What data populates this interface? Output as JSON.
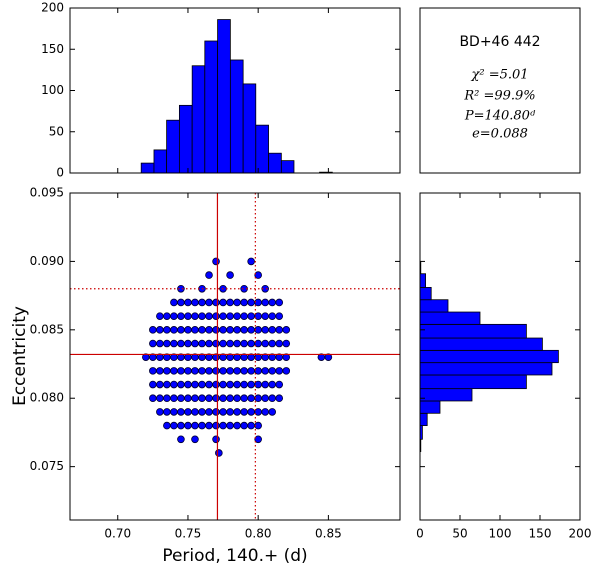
{
  "chart_data": [
    {
      "type": "histogram",
      "orientation": "vertical",
      "color": "#0000ff",
      "edge_color": "#000000",
      "bins": [
        0.7167,
        0.7258,
        0.7348,
        0.7439,
        0.753,
        0.762,
        0.7711,
        0.7802,
        0.7893,
        0.7983,
        0.8074,
        0.8165,
        0.8255,
        0.8346,
        0.8437,
        0.8528
      ],
      "counts": [
        12,
        28,
        64,
        82,
        130,
        160,
        186,
        137,
        108,
        58,
        24,
        15,
        0,
        0,
        1
      ],
      "xlim": [
        0.666,
        0.901
      ],
      "xticks": [
        0.7,
        0.75,
        0.8,
        0.85
      ],
      "ylim": [
        0,
        200
      ],
      "yticks": [
        0,
        50,
        100,
        150,
        200
      ]
    },
    {
      "type": "scatter",
      "color": "#0000ff",
      "edge_color": "#000033",
      "x_label": "Period, 140.+ (d)",
      "y_label": "Eccentricity",
      "annotations": [
        "BD+46 442",
        "χ² =5.01",
        "R² =99.9%",
        "P=140.80ᵈ",
        "e=0.088"
      ],
      "x": [
        0.77,
        0.795,
        0.765,
        0.78,
        0.8,
        0.745,
        0.76,
        0.775,
        0.79,
        0.805,
        0.74,
        0.745,
        0.75,
        0.755,
        0.76,
        0.765,
        0.77,
        0.775,
        0.78,
        0.785,
        0.79,
        0.795,
        0.8,
        0.805,
        0.81,
        0.815,
        0.73,
        0.735,
        0.74,
        0.745,
        0.75,
        0.755,
        0.76,
        0.765,
        0.77,
        0.775,
        0.78,
        0.785,
        0.79,
        0.795,
        0.8,
        0.805,
        0.81,
        0.815,
        0.725,
        0.73,
        0.735,
        0.74,
        0.745,
        0.75,
        0.755,
        0.76,
        0.765,
        0.77,
        0.775,
        0.78,
        0.785,
        0.79,
        0.795,
        0.8,
        0.805,
        0.81,
        0.815,
        0.82,
        0.725,
        0.73,
        0.735,
        0.74,
        0.745,
        0.75,
        0.755,
        0.76,
        0.765,
        0.77,
        0.775,
        0.78,
        0.785,
        0.79,
        0.795,
        0.8,
        0.805,
        0.81,
        0.815,
        0.82,
        0.72,
        0.725,
        0.73,
        0.735,
        0.74,
        0.745,
        0.75,
        0.755,
        0.76,
        0.765,
        0.77,
        0.775,
        0.78,
        0.785,
        0.79,
        0.795,
        0.8,
        0.805,
        0.81,
        0.815,
        0.82,
        0.845,
        0.85,
        0.725,
        0.73,
        0.735,
        0.74,
        0.745,
        0.75,
        0.755,
        0.76,
        0.765,
        0.77,
        0.775,
        0.78,
        0.785,
        0.79,
        0.795,
        0.8,
        0.805,
        0.81,
        0.815,
        0.82,
        0.725,
        0.73,
        0.735,
        0.74,
        0.745,
        0.75,
        0.755,
        0.76,
        0.765,
        0.77,
        0.775,
        0.78,
        0.785,
        0.79,
        0.795,
        0.8,
        0.805,
        0.81,
        0.815,
        0.725,
        0.73,
        0.735,
        0.74,
        0.745,
        0.75,
        0.755,
        0.76,
        0.765,
        0.77,
        0.775,
        0.78,
        0.785,
        0.79,
        0.795,
        0.8,
        0.805,
        0.81,
        0.815,
        0.73,
        0.735,
        0.74,
        0.745,
        0.75,
        0.755,
        0.76,
        0.765,
        0.77,
        0.775,
        0.78,
        0.785,
        0.79,
        0.795,
        0.8,
        0.805,
        0.81,
        0.735,
        0.74,
        0.745,
        0.75,
        0.755,
        0.76,
        0.765,
        0.77,
        0.775,
        0.78,
        0.785,
        0.79,
        0.795,
        0.8,
        0.745,
        0.755,
        0.77,
        0.8,
        0.772
      ],
      "y": [
        0.09,
        0.09,
        0.089,
        0.089,
        0.089,
        0.088,
        0.088,
        0.088,
        0.088,
        0.088,
        0.087,
        0.087,
        0.087,
        0.087,
        0.087,
        0.087,
        0.087,
        0.087,
        0.087,
        0.087,
        0.087,
        0.087,
        0.087,
        0.087,
        0.087,
        0.087,
        0.086,
        0.086,
        0.086,
        0.086,
        0.086,
        0.086,
        0.086,
        0.086,
        0.086,
        0.086,
        0.086,
        0.086,
        0.086,
        0.086,
        0.086,
        0.086,
        0.086,
        0.086,
        0.085,
        0.085,
        0.085,
        0.085,
        0.085,
        0.085,
        0.085,
        0.085,
        0.085,
        0.085,
        0.085,
        0.085,
        0.085,
        0.085,
        0.085,
        0.085,
        0.085,
        0.085,
        0.085,
        0.085,
        0.084,
        0.084,
        0.084,
        0.084,
        0.084,
        0.084,
        0.084,
        0.084,
        0.084,
        0.084,
        0.084,
        0.084,
        0.084,
        0.084,
        0.084,
        0.084,
        0.084,
        0.084,
        0.084,
        0.084,
        0.083,
        0.083,
        0.083,
        0.083,
        0.083,
        0.083,
        0.083,
        0.083,
        0.083,
        0.083,
        0.083,
        0.083,
        0.083,
        0.083,
        0.083,
        0.083,
        0.083,
        0.083,
        0.083,
        0.083,
        0.083,
        0.083,
        0.083,
        0.082,
        0.082,
        0.082,
        0.082,
        0.082,
        0.082,
        0.082,
        0.082,
        0.082,
        0.082,
        0.082,
        0.082,
        0.082,
        0.082,
        0.082,
        0.082,
        0.082,
        0.082,
        0.082,
        0.082,
        0.081,
        0.081,
        0.081,
        0.081,
        0.081,
        0.081,
        0.081,
        0.081,
        0.081,
        0.081,
        0.081,
        0.081,
        0.081,
        0.081,
        0.081,
        0.081,
        0.081,
        0.081,
        0.081,
        0.08,
        0.08,
        0.08,
        0.08,
        0.08,
        0.08,
        0.08,
        0.08,
        0.08,
        0.08,
        0.08,
        0.08,
        0.08,
        0.08,
        0.08,
        0.08,
        0.08,
        0.08,
        0.08,
        0.079,
        0.079,
        0.079,
        0.079,
        0.079,
        0.079,
        0.079,
        0.079,
        0.079,
        0.079,
        0.079,
        0.079,
        0.079,
        0.079,
        0.079,
        0.079,
        0.079,
        0.078,
        0.078,
        0.078,
        0.078,
        0.078,
        0.078,
        0.078,
        0.078,
        0.078,
        0.078,
        0.078,
        0.078,
        0.078,
        0.078,
        0.077,
        0.077,
        0.077,
        0.077,
        0.076
      ],
      "reference_lines": [
        {
          "axis": "x",
          "value": 0.771,
          "style": "solid",
          "color": "#cc0000"
        },
        {
          "axis": "x",
          "value": 0.798,
          "style": "dotted",
          "color": "#cc0000"
        },
        {
          "axis": "y",
          "value": 0.0832,
          "style": "solid",
          "color": "#cc0000"
        },
        {
          "axis": "y",
          "value": 0.088,
          "style": "dotted",
          "color": "#cc0000"
        }
      ],
      "xlim": [
        0.666,
        0.901
      ],
      "xticks": [
        {
          "value": 0.7,
          "label": "0.70"
        },
        0.75,
        {
          "value": 0.8,
          "label": "0.80"
        },
        0.85
      ],
      "ylim": [
        0.0711,
        0.095
      ],
      "yticks": [
        0.075,
        {
          "value": 0.08,
          "label": "0.080"
        },
        0.085,
        {
          "value": 0.09,
          "label": "0.090"
        },
        0.095
      ]
    },
    {
      "type": "histogram",
      "orientation": "horizontal",
      "color": "#0000ff",
      "edge_color": "#000000",
      "bins": [
        0.0761,
        0.077,
        0.078,
        0.0789,
        0.0798,
        0.0807,
        0.0817,
        0.0826,
        0.0835,
        0.0844,
        0.0854,
        0.0863,
        0.0872,
        0.0881,
        0.0891,
        0.09
      ],
      "counts": [
        1,
        3,
        9,
        25,
        65,
        133,
        165,
        173,
        153,
        133,
        75,
        35,
        14,
        7,
        1
      ],
      "xlim": [
        0,
        200
      ],
      "xticks": [
        0,
        50,
        100,
        150,
        200
      ],
      "ylim": [
        0.0711,
        0.095
      ],
      "yticks": [
        0.075,
        0.08,
        0.085,
        0.09,
        0.095
      ]
    }
  ]
}
